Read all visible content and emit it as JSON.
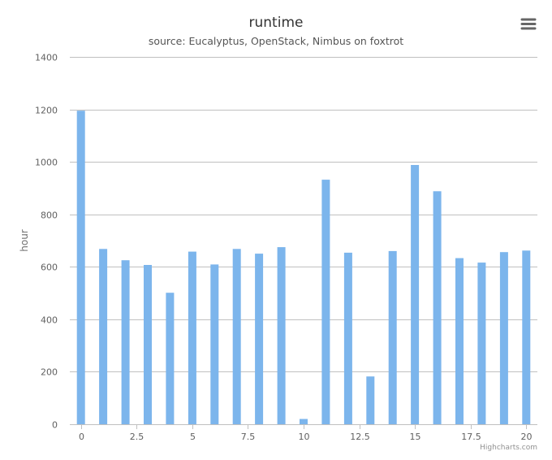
{
  "chart_data": {
    "type": "bar",
    "title": "runtime",
    "subtitle": "source: Eucalyptus, OpenStack, Nimbus on foxtrot",
    "ylabel": "hour",
    "xlabel": "",
    "x": [
      0,
      1,
      2,
      3,
      4,
      5,
      6,
      7,
      8,
      9,
      10,
      11,
      12,
      13,
      14,
      15,
      16,
      17,
      18,
      19,
      20
    ],
    "values": [
      1195,
      668,
      625,
      607,
      501,
      658,
      609,
      668,
      650,
      675,
      20,
      932,
      654,
      182,
      660,
      988,
      888,
      633,
      616,
      656,
      662
    ],
    "xlim": [
      -0.5,
      20.5
    ],
    "ylim": [
      0,
      1400
    ],
    "xticks": [
      0,
      2.5,
      5,
      7.5,
      10,
      12.5,
      15,
      17.5,
      20
    ],
    "xtick_labels": [
      "0",
      "2.5",
      "5",
      "7.5",
      "10",
      "12.5",
      "15",
      "17.5",
      "20"
    ],
    "yticks": [
      0,
      200,
      400,
      600,
      800,
      1000,
      1200,
      1400
    ],
    "ytick_labels": [
      "0",
      "200",
      "400",
      "600",
      "800",
      "1000",
      "1200",
      "1400"
    ],
    "grid": true,
    "legend": "none",
    "bar_color": "#7cb5ec",
    "grid_color": "#c0c0c0"
  },
  "credits": "Highcharts.com",
  "menu_icon": "hamburger-menu-icon"
}
